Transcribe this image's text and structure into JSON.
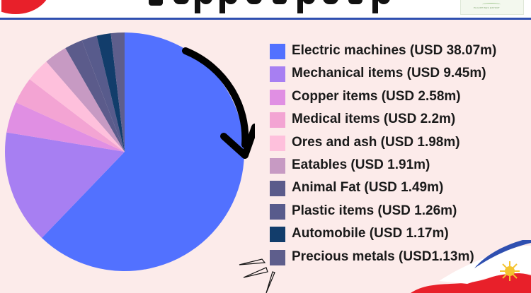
{
  "header": {
    "rule_color": "#2f4fb0",
    "logo_text": "PHILIPPINES EXPORT"
  },
  "colors": {
    "background": "#fcebea",
    "arrow": "#000000"
  },
  "chart_data": {
    "type": "pie",
    "title": "",
    "categories": [
      "Electric machines",
      "Mechanical items",
      "Copper items",
      "Medical items",
      "Ores and ash",
      "Eatables",
      "Animal Fat",
      "Plastic items",
      "Automobile",
      "Precious metals"
    ],
    "values": [
      38.07,
      9.45,
      2.58,
      2.2,
      1.98,
      1.91,
      1.49,
      1.26,
      1.17,
      1.13
    ],
    "unit": "USD m",
    "legend_position": "right",
    "colors": [
      "#5271ff",
      "#a77ff2",
      "#e08fe3",
      "#f3a4d3",
      "#fec0dc",
      "#c79ac3",
      "#5b5b8b",
      "#585b8c",
      "#123d6b",
      "#5e5e8c"
    ],
    "legend": [
      "Electric machines (USD 38.07m)",
      "Mechanical items (USD 9.45m)",
      "Copper items (USD 2.58m)",
      "Medical items (USD 2.2m)",
      "Ores and ash (USD 1.98m)",
      "Eatables (USD 1.91m)",
      "Animal Fat (USD 1.49m)",
      "Plastic items (USD 1.26m)",
      "Automobile (USD 1.17m)",
      "Precious metals (USD1.13m)"
    ]
  }
}
